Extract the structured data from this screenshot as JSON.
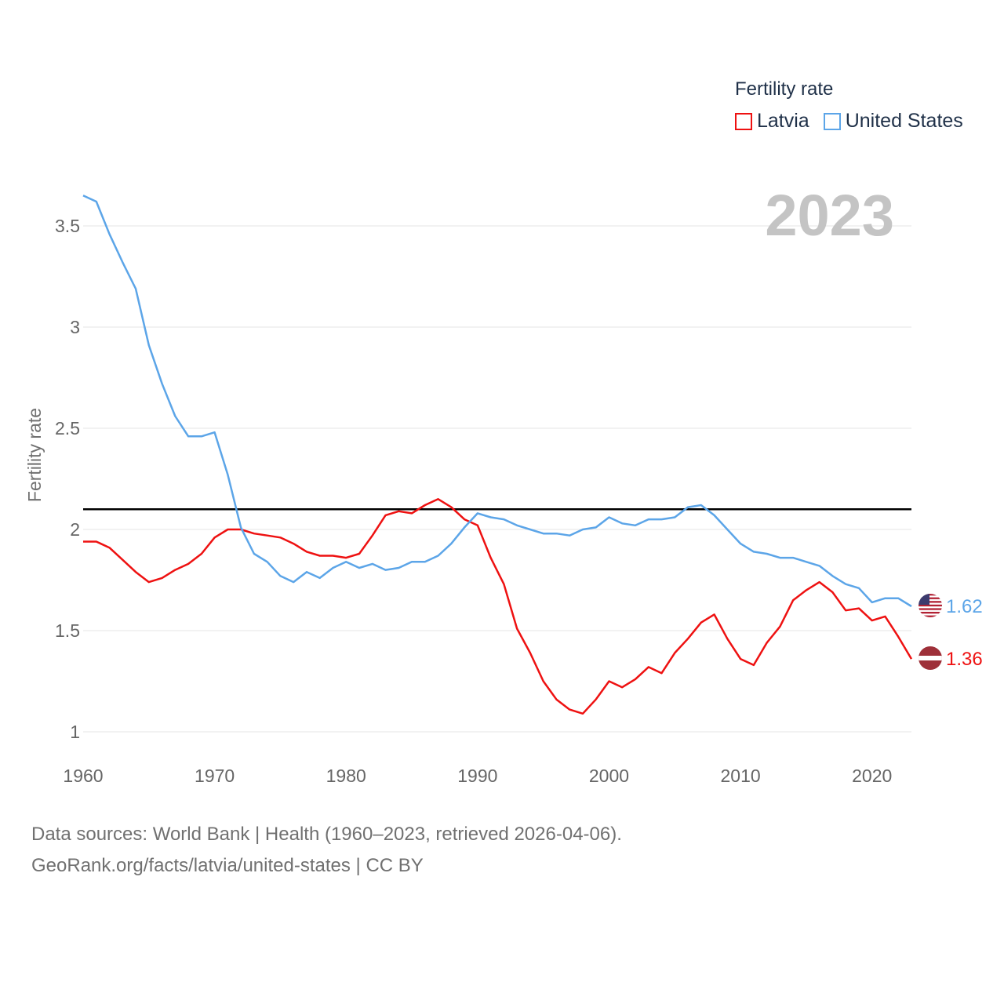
{
  "legend": {
    "title": "Fertility rate",
    "items": [
      {
        "label": "Latvia",
        "color": "#ee1111"
      },
      {
        "label": "United States",
        "color": "#5ca5e8"
      }
    ]
  },
  "year_label": "2023",
  "footer": {
    "line1": "Data sources: World Bank | Health (1960–2023, retrieved 2026-04-06).",
    "line2": "GeoRank.org/facts/latvia/united-states | CC BY"
  },
  "chart_data": {
    "type": "line",
    "title": "Fertility rate",
    "xlabel": "",
    "ylabel": "Fertility rate",
    "xlim": [
      1960,
      2023
    ],
    "ylim": [
      1,
      3.5
    ],
    "x_ticks": [
      1960,
      1970,
      1980,
      1990,
      2000,
      2010,
      2020
    ],
    "y_ticks": [
      1,
      1.5,
      2,
      2.5,
      3,
      3.5
    ],
    "y_tick_labels": [
      "1",
      "1.5",
      "2",
      "2.5",
      "3",
      "3.5"
    ],
    "grid": true,
    "reference_line": 2.1,
    "x": [
      1960,
      1961,
      1962,
      1963,
      1964,
      1965,
      1966,
      1967,
      1968,
      1969,
      1970,
      1971,
      1972,
      1973,
      1974,
      1975,
      1976,
      1977,
      1978,
      1979,
      1980,
      1981,
      1982,
      1983,
      1984,
      1985,
      1986,
      1987,
      1988,
      1989,
      1990,
      1991,
      1992,
      1993,
      1994,
      1995,
      1996,
      1997,
      1998,
      1999,
      2000,
      2001,
      2002,
      2003,
      2004,
      2005,
      2006,
      2007,
      2008,
      2009,
      2010,
      2011,
      2012,
      2013,
      2014,
      2015,
      2016,
      2017,
      2018,
      2019,
      2020,
      2021,
      2022,
      2023
    ],
    "series": [
      {
        "name": "Latvia",
        "color": "#ee1111",
        "end_label": "1.36",
        "flag": "latvia-flag",
        "values": [
          1.94,
          1.94,
          1.91,
          1.85,
          1.79,
          1.74,
          1.76,
          1.8,
          1.83,
          1.88,
          1.96,
          2.0,
          2.0,
          1.98,
          1.97,
          1.96,
          1.93,
          1.89,
          1.87,
          1.87,
          1.86,
          1.88,
          1.97,
          2.07,
          2.09,
          2.08,
          2.12,
          2.15,
          2.11,
          2.05,
          2.02,
          1.86,
          1.73,
          1.51,
          1.39,
          1.25,
          1.16,
          1.11,
          1.09,
          1.16,
          1.25,
          1.22,
          1.26,
          1.32,
          1.29,
          1.39,
          1.46,
          1.54,
          1.58,
          1.46,
          1.36,
          1.33,
          1.44,
          1.52,
          1.65,
          1.7,
          1.74,
          1.69,
          1.6,
          1.61,
          1.55,
          1.57,
          1.47,
          1.36
        ]
      },
      {
        "name": "United States",
        "color": "#5ca5e8",
        "end_label": "1.62",
        "flag": "us-flag",
        "values": [
          3.65,
          3.62,
          3.46,
          3.32,
          3.19,
          2.91,
          2.72,
          2.56,
          2.46,
          2.46,
          2.48,
          2.27,
          2.01,
          1.88,
          1.84,
          1.77,
          1.74,
          1.79,
          1.76,
          1.81,
          1.84,
          1.81,
          1.83,
          1.8,
          1.81,
          1.84,
          1.84,
          1.87,
          1.93,
          2.01,
          2.08,
          2.06,
          2.05,
          2.02,
          2.0,
          1.98,
          1.98,
          1.97,
          2.0,
          2.01,
          2.06,
          2.03,
          2.02,
          2.05,
          2.05,
          2.06,
          2.11,
          2.12,
          2.07,
          2.0,
          1.93,
          1.89,
          1.88,
          1.86,
          1.86,
          1.84,
          1.82,
          1.77,
          1.73,
          1.71,
          1.64,
          1.66,
          1.66,
          1.62
        ]
      }
    ]
  }
}
